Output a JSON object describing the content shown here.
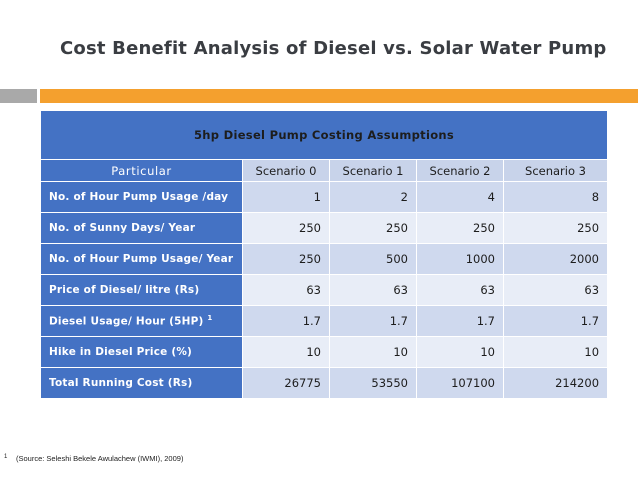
{
  "slide": {
    "title": "Cost Benefit Analysis of Diesel vs. Solar Water Pump",
    "footnote_mark": "1",
    "footnote_text": "(Source: Seleshi Bekele Awulachew (IWMI), 2009)"
  },
  "table": {
    "title": "5hp Diesel Pump Costing Assumptions",
    "header": [
      "Particular",
      "Scenario 0",
      "Scenario 1",
      "Scenario 2",
      "Scenario 3"
    ],
    "rows": [
      {
        "label": "No. of Hour Pump Usage /day",
        "sup": "",
        "values": [
          "1",
          "2",
          "4",
          "8"
        ]
      },
      {
        "label": "No. of Sunny Days/ Year",
        "sup": "",
        "values": [
          "250",
          "250",
          "250",
          "250"
        ]
      },
      {
        "label": "No. of Hour Pump Usage/ Year",
        "sup": "",
        "values": [
          "250",
          "500",
          "1000",
          "2000"
        ]
      },
      {
        "label": "Price of Diesel/ litre (Rs)",
        "sup": "",
        "values": [
          "63",
          "63",
          "63",
          "63"
        ]
      },
      {
        "label": "Diesel Usage/ Hour (5HP)",
        "sup": "1",
        "values": [
          "1.7",
          "1.7",
          "1.7",
          "1.7"
        ]
      },
      {
        "label": "Hike in Diesel Price (%)",
        "sup": "",
        "values": [
          "10",
          "10",
          "10",
          "10"
        ]
      },
      {
        "label": "Total Running Cost (Rs)",
        "sup": "",
        "values": [
          "26775",
          "53550",
          "107100",
          "214200"
        ]
      }
    ]
  },
  "colors": {
    "header_blue": "#4472c4",
    "accent_orange": "#f4a02e",
    "accent_gray": "#a9a9a9"
  }
}
